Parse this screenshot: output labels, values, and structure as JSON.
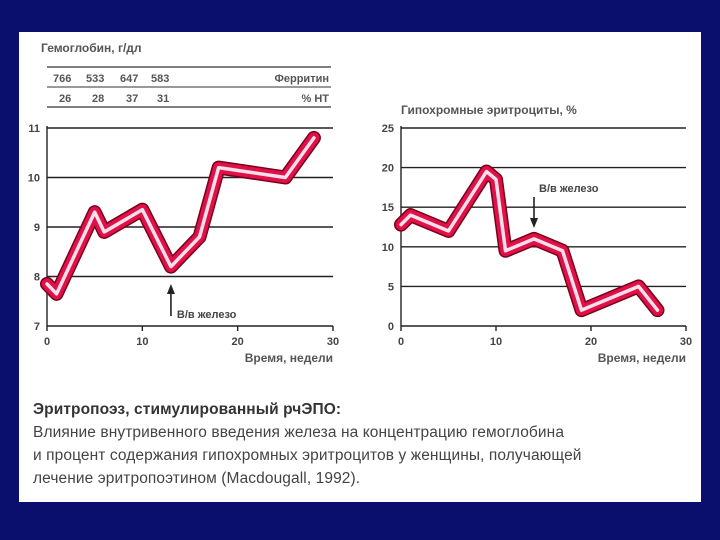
{
  "chart_data": [
    {
      "type": "line",
      "ylabel": "Гемоглобин, г/дл",
      "xlabel": "Время, недели",
      "xlim": [
        0,
        30
      ],
      "ylim": [
        7,
        11
      ],
      "xticks": [
        "0",
        "10",
        "20",
        "30"
      ],
      "yticks": [
        "7",
        "8",
        "9",
        "10",
        "11"
      ],
      "grid": true,
      "table": {
        "row1": {
          "values": [
            "766",
            "533",
            "647",
            "583"
          ],
          "label": "Ферритин"
        },
        "row2": {
          "values": [
            "26",
            "28",
            "37",
            "31"
          ],
          "label": "% НТ"
        }
      },
      "series": [
        {
          "x": [
            0,
            1,
            5,
            6,
            10,
            13,
            16,
            18,
            25,
            28
          ],
          "y": [
            7.85,
            7.65,
            9.3,
            8.9,
            9.35,
            8.2,
            8.8,
            10.2,
            10.0,
            10.8
          ]
        }
      ],
      "annotation": {
        "text": "В/в железо",
        "x": 13
      }
    },
    {
      "type": "line",
      "ylabel": "Гипохромные эритроциты, %",
      "xlabel": "Время, недели",
      "xlim": [
        0,
        30
      ],
      "ylim": [
        0,
        25
      ],
      "xticks": [
        "0",
        "10",
        "20",
        "30"
      ],
      "yticks": [
        "0",
        "5",
        "10",
        "15",
        "20",
        "25"
      ],
      "grid": true,
      "series": [
        {
          "x": [
            0,
            1,
            5,
            9,
            10,
            11,
            14,
            17,
            19,
            25,
            27
          ],
          "y": [
            12.8,
            14.0,
            12.0,
            19.5,
            18.5,
            9.5,
            11.0,
            9.5,
            2.0,
            5.0,
            2.0
          ]
        }
      ],
      "annotation": {
        "text": "В/в железо",
        "x": 14
      }
    }
  ],
  "caption": {
    "heading": "Эритропоэз, стимулированный рчЭПО:",
    "lines": [
      "Влияние внутривенного введения железа на концентрацию гемоглобина",
      "и процент содержания гипохромных эритроцитов у женщины, получающей",
      "лечение эритропоэтином (Macdougall, 1992)."
    ]
  }
}
